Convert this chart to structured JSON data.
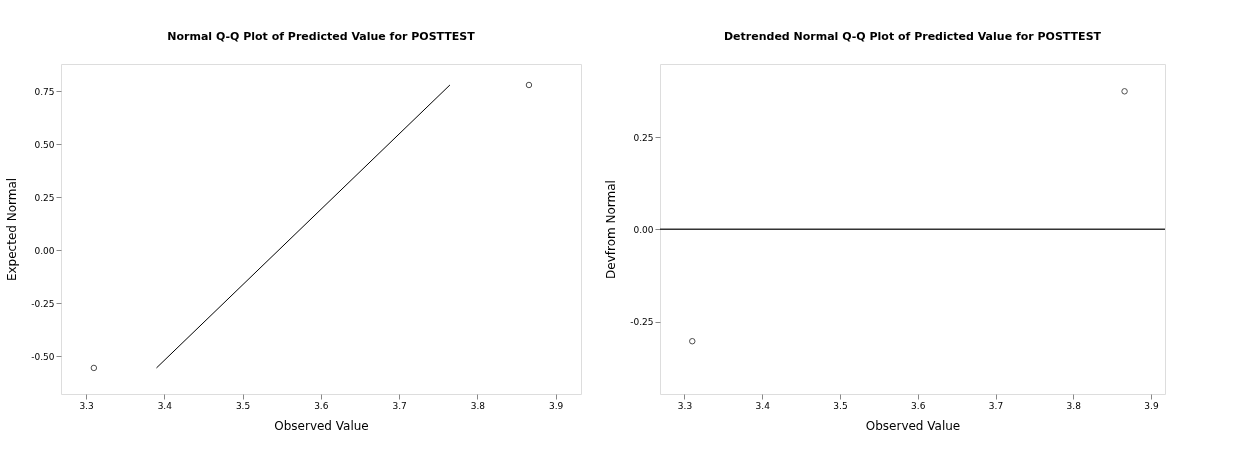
{
  "chart_data": [
    {
      "type": "scatter",
      "title": "Normal Q-Q Plot of Predicted Value for POSTTEST",
      "xlabel": "Observed Value",
      "ylabel": "Expected Normal",
      "grid": false,
      "xlim": [
        3.268,
        3.9325
      ],
      "xticks": [
        3.3,
        3.4,
        3.5,
        3.6,
        3.7,
        3.8,
        3.9
      ],
      "ylim": [
        -0.678,
        0.879
      ],
      "yticks": [
        {
          "value": -0.5,
          "label": "-0.50"
        },
        {
          "value": -0.25,
          "label": "-0.25"
        },
        {
          "value": 0,
          "label": "0.00"
        },
        {
          "value": 0.25,
          "label": "0.25"
        },
        {
          "value": 0.5,
          "label": "0.50"
        },
        {
          "value": 0.75,
          "label": "0.75"
        }
      ],
      "series": [
        {
          "color": "#000000",
          "marker": "circle",
          "x": [
            3.31,
            3.866
          ],
          "values": [
            -0.555,
            0.78
          ]
        },
        {
          "type": "line",
          "color": "#000000",
          "marker": "none",
          "line_style": "solid",
          "x": [
            3.39,
            3.765
          ],
          "values": [
            -0.555,
            0.78
          ]
        }
      ]
    },
    {
      "type": "scatter",
      "title": "Detrended Normal Q-Q Plot of Predicted Value for POSTTEST",
      "xlabel": "Observed Value",
      "ylabel": "Devfrom Normal",
      "grid": false,
      "xlim": [
        3.2685,
        3.918
      ],
      "xticks": [
        3.3,
        3.4,
        3.5,
        3.6,
        3.7,
        3.8,
        3.9
      ],
      "ylim": [
        -0.446,
        0.448
      ],
      "yticks": [
        {
          "value": -0.25,
          "label": "-0.25"
        },
        {
          "value": 0,
          "label": "0.00"
        },
        {
          "value": 0.25,
          "label": "0.25"
        }
      ],
      "series": [
        {
          "color": "#000000",
          "marker": "circle",
          "x": [
            3.31,
            3.866
          ],
          "values": [
            -0.303,
            0.374
          ]
        }
      ],
      "ref_lines": [
        {
          "axis": "y",
          "value": 0,
          "color": "#333333"
        }
      ]
    }
  ]
}
